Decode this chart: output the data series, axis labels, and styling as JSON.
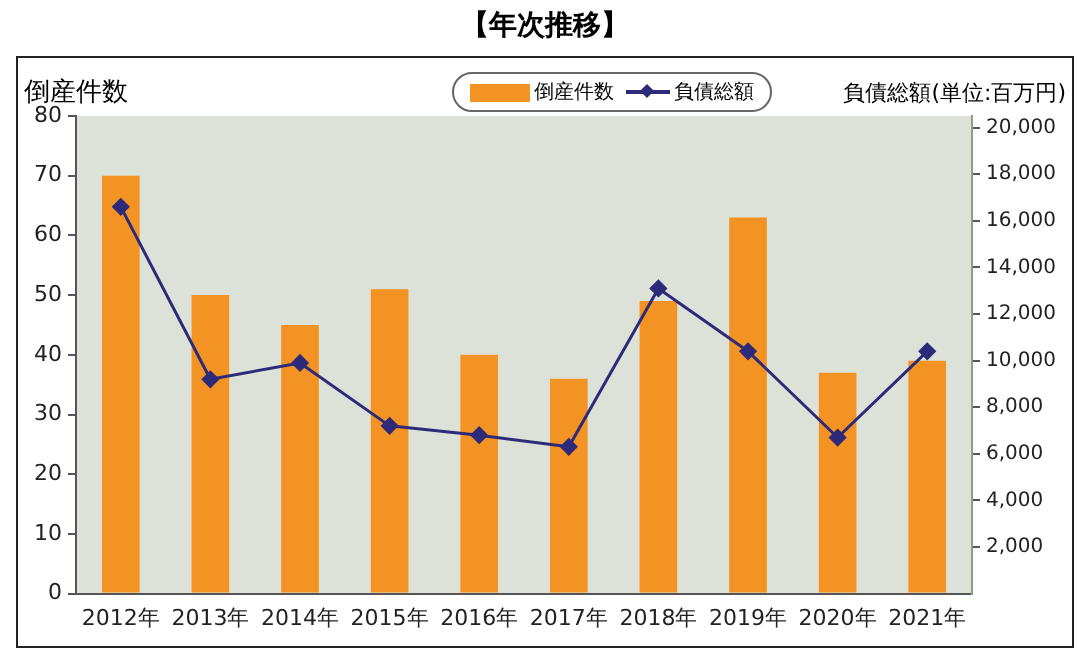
{
  "chart_data": {
    "type": "bar",
    "title": "【年次推移】",
    "ylabel": "倒産件数",
    "y2label": "負債総額(単位:百万円)",
    "categories": [
      "2012年",
      "2013年",
      "2014年",
      "2015年",
      "2016年",
      "2017年",
      "2018年",
      "2019年",
      "2020年",
      "2021年"
    ],
    "series": [
      {
        "name": "倒産件数",
        "color": "#f39323",
        "values": [
          70,
          50,
          45,
          51,
          40,
          36,
          49,
          63,
          37,
          39
        ]
      },
      {
        "name": "負債総額",
        "type": "line",
        "axis": "y2",
        "color": "#2e2a7a",
        "marker": "diamond",
        "values": [
          16600,
          9200,
          9900,
          7200,
          6800,
          6300,
          13100,
          10400,
          6700,
          10400
        ]
      }
    ],
    "ylim": [
      0,
      80
    ],
    "yticks": [
      0,
      10,
      20,
      30,
      40,
      50,
      60,
      70,
      80
    ],
    "y2lim": [
      0,
      20500
    ],
    "y2ticks": [
      {
        "value": 2000,
        "label": "2,000"
      },
      {
        "value": 4000,
        "label": "4,000"
      },
      {
        "value": 6000,
        "label": "6,000"
      },
      {
        "value": 8000,
        "label": "8,000"
      },
      {
        "value": 10000,
        "label": "10,000"
      },
      {
        "value": 12000,
        "label": "12,000"
      },
      {
        "value": 14000,
        "label": "14,000"
      },
      {
        "value": 16000,
        "label": "16,000"
      },
      {
        "value": 18000,
        "label": "18,000"
      },
      {
        "value": 20000,
        "label": "20,000"
      }
    ],
    "grid": false,
    "legend": "top right"
  }
}
